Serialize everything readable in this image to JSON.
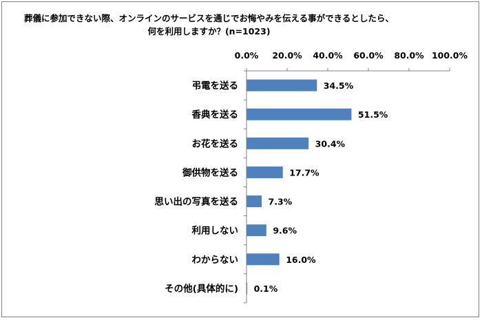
{
  "chart_data": {
    "type": "bar",
    "orientation": "horizontal",
    "title": "葬儀に参加できない際、オンラインのサービスを通じでお悔やみを伝える事ができるとしたら、何を利用しますか？(n=1023)",
    "categories": [
      "弔電を送る",
      "香典を送る",
      "お花を送る",
      "御供物を送る",
      "思い出の写真を送る",
      "利用しない",
      "わからない",
      "その他(具体的に)"
    ],
    "values": [
      34.5,
      51.5,
      30.4,
      17.7,
      7.3,
      9.6,
      16.0,
      0.1
    ],
    "value_labels": [
      "34.5%",
      "51.5%",
      "30.4%",
      "17.7%",
      "7.3%",
      "9.6%",
      "16.0%",
      "0.1%"
    ],
    "xlim": [
      0,
      100
    ],
    "x_ticks": [
      0,
      20,
      40,
      60,
      80,
      100
    ],
    "x_tick_labels": [
      "0.0%",
      "20.0%",
      "40.0%",
      "60.0%",
      "80.0%",
      "100.0%"
    ],
    "axis_position": "top",
    "grid": false,
    "legend": "none",
    "bar_color": "#4f81bd"
  }
}
